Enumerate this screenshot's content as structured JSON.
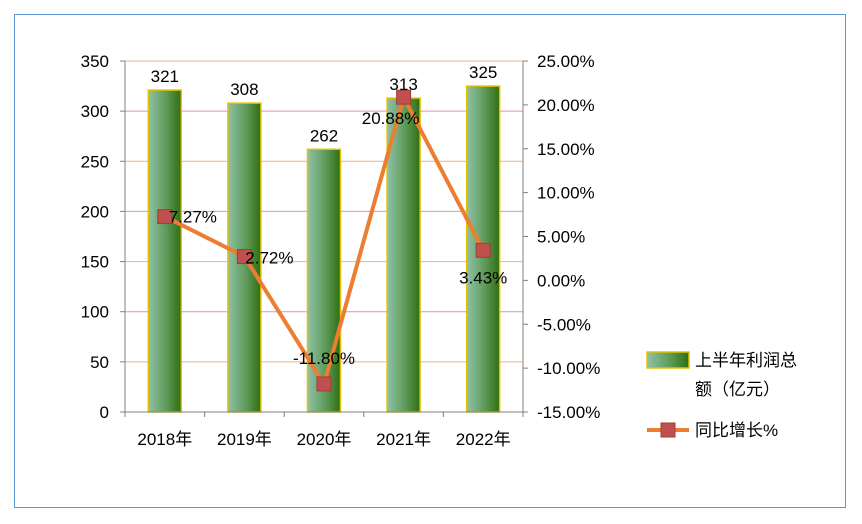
{
  "chart_data": {
    "type": "bar",
    "categories": [
      "2018年",
      "2019年",
      "2020年",
      "2021年",
      "2022年"
    ],
    "series": [
      {
        "name": "上半年利润总额（亿元）",
        "name_lines": [
          "上半年利润总",
          "额（亿元）"
        ],
        "type": "bar",
        "axis": "left",
        "values": [
          321,
          308,
          262,
          313,
          325
        ],
        "labels": [
          "321",
          "308",
          "262",
          "313",
          "325"
        ]
      },
      {
        "name": "同比增长%",
        "type": "line",
        "axis": "right",
        "values": [
          7.27,
          2.72,
          -11.8,
          20.88,
          3.43
        ],
        "labels": [
          "7.27%",
          "2.72%",
          "-11.80%",
          "20.88%",
          "3.43%"
        ]
      }
    ],
    "y_left": {
      "min": 0,
      "max": 350,
      "step": 50,
      "ticks": [
        "0",
        "50",
        "100",
        "150",
        "200",
        "250",
        "300",
        "350"
      ]
    },
    "y_right": {
      "min": -15,
      "max": 25,
      "step": 5,
      "ticks": [
        "-15.00%",
        "-10.00%",
        "-5.00%",
        "0.00%",
        "5.00%",
        "10.00%",
        "15.00%",
        "20.00%",
        "25.00%"
      ]
    },
    "grid": true,
    "legend_position": "right",
    "colors": {
      "bar_edge": "#e6c200",
      "bar_dark": "#3f7d1f",
      "bar_light": "#8fc2a8",
      "line": "#ed7d31",
      "marker": "#c0504d",
      "grid_orange": "#f4b183",
      "grid_pink": "#e88cc0",
      "axis": "#808080",
      "border": "#5b9bd5"
    }
  }
}
